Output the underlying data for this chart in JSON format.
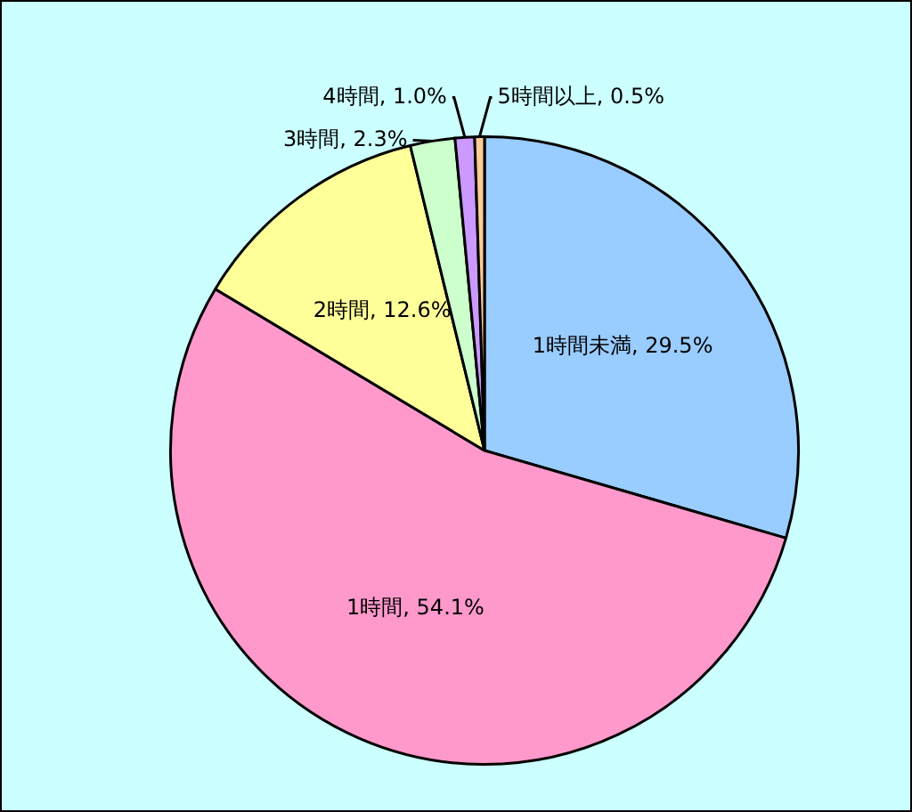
{
  "chart_data": {
    "type": "pie",
    "categories": [
      "1時間未満",
      "1時間",
      "2時間",
      "3時間",
      "4時間",
      "5時間以上"
    ],
    "values": [
      29.5,
      54.1,
      12.6,
      2.3,
      1.0,
      0.5
    ],
    "colors": [
      "#99ccff",
      "#ff99cc",
      "#ffff99",
      "#ccffcc",
      "#cc99ff",
      "#ffcc99"
    ],
    "value_labels": [
      "29.5%",
      "54.1%",
      "12.6%",
      "2.3%",
      "1.0%",
      "0.5%"
    ],
    "legend": false
  }
}
